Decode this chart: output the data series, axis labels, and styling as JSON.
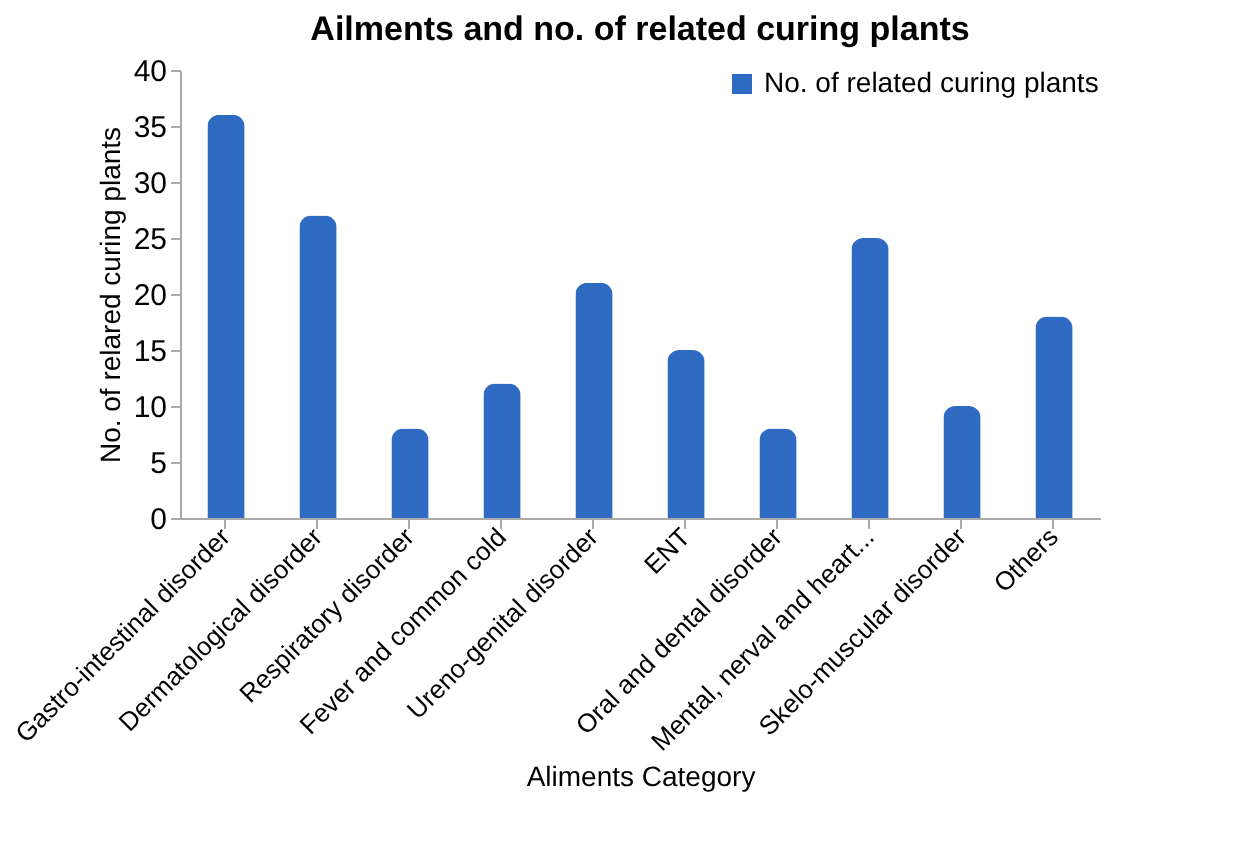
{
  "chart_data": {
    "type": "bar",
    "title": "Ailments and no. of related curing plants",
    "xlabel": "Aliments Category",
    "ylabel": "No. of relared curing plants",
    "categories": [
      "Gastro-intestinal disorder",
      "Dermatological disorder",
      "Respiratory disorder",
      "Fever and common cold",
      "Ureno-genital disorder",
      "ENT",
      "Oral and dental disorder",
      "Mental, nerval and heart...",
      "Skelo-muscular disorder",
      "Others"
    ],
    "series": [
      {
        "name": "No. of related curing plants",
        "color": "#2f6bc2",
        "values": [
          36,
          27,
          8,
          12,
          21,
          15,
          8,
          25,
          10,
          18
        ]
      }
    ],
    "ylim": [
      0,
      40
    ],
    "yticks": [
      0,
      5,
      10,
      15,
      20,
      25,
      30,
      35,
      40
    ],
    "legend": "top right",
    "grid": false
  }
}
